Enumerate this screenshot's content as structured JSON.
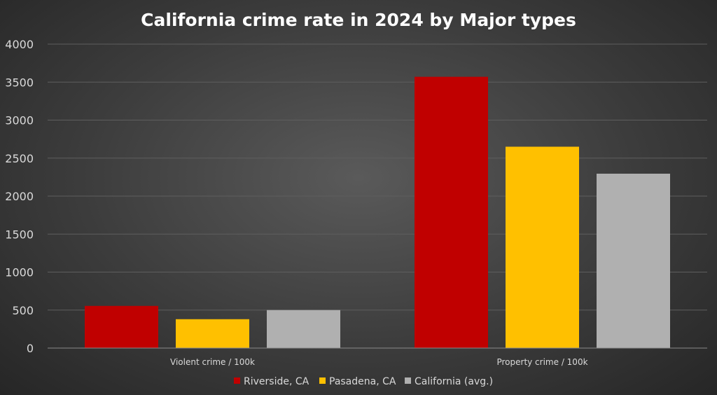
{
  "chart_data": {
    "type": "bar",
    "title": "California crime rate in 2024 by Major types",
    "categories": [
      "Violent crime / 100k",
      "Property crime / 100k"
    ],
    "series": [
      {
        "name": "Riverside, CA",
        "color": "#c00000",
        "values": [
          555,
          3570
        ]
      },
      {
        "name": "Pasadena, CA",
        "color": "#ffc000",
        "values": [
          380,
          2650
        ]
      },
      {
        "name": "California (avg.)",
        "color": "#b0b0b0",
        "values": [
          500,
          2295
        ]
      }
    ],
    "ylim": [
      0,
      4000
    ],
    "yticks": [
      "0",
      "500",
      "1000",
      "1500",
      "2000",
      "2500",
      "3000",
      "3500",
      "4000"
    ],
    "grid": true,
    "legend_position": "bottom"
  }
}
